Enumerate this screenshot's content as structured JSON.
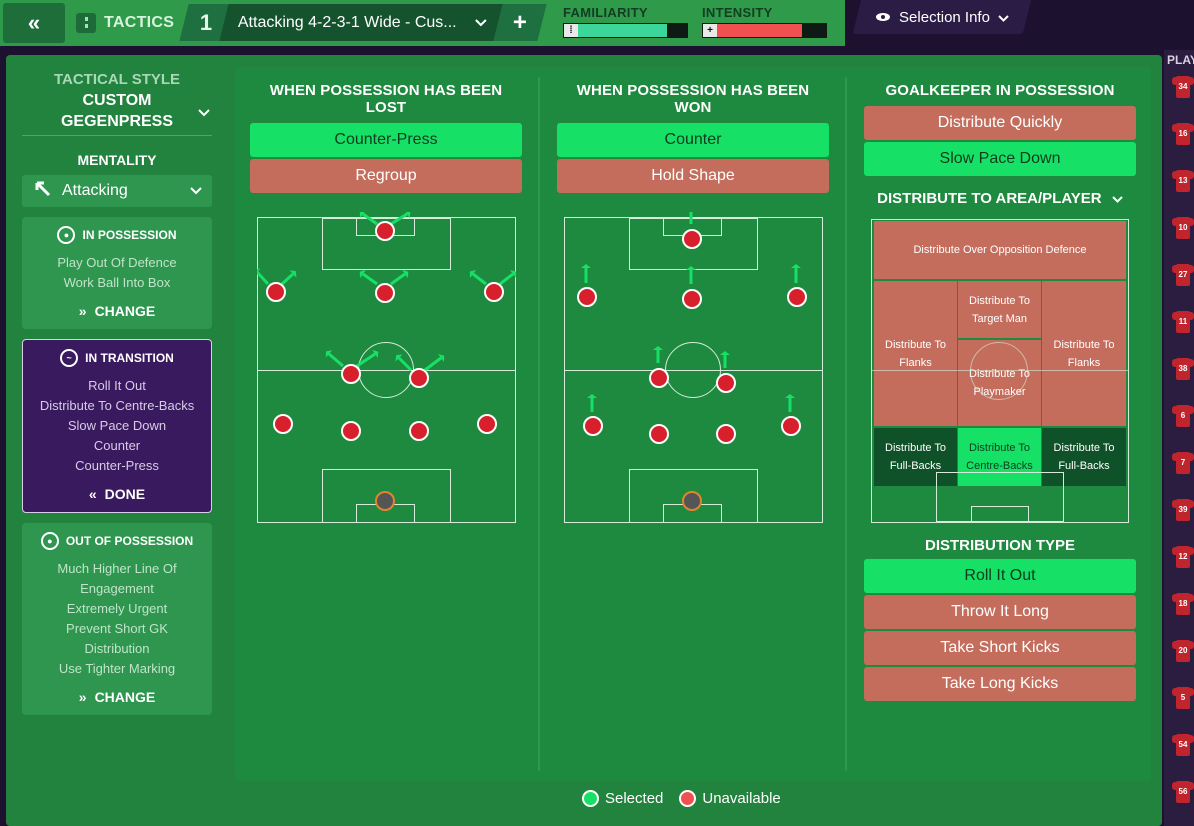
{
  "topbar": {
    "back_icon": "double-chevron-left-icon",
    "tactics_label": "TACTICS",
    "tactic_number": "1",
    "tactic_name": "Attacking 4-2-3-1 Wide - Cus...",
    "add_label": "+",
    "familiarity_label": "FAMILIARITY",
    "familiarity_level": 0.82,
    "familiarity_color": "#3dd69a",
    "intensity_label": "INTENSITY",
    "intensity_level": 0.78,
    "intensity_color": "#f05050",
    "selection_info_label": "Selection Info"
  },
  "right_strip": {
    "header": "PLAY",
    "numbers": [
      "34",
      "16",
      "13",
      "10",
      "27",
      "11",
      "38",
      "6",
      "7",
      "39",
      "12",
      "18",
      "20",
      "5",
      "54",
      "56"
    ]
  },
  "left": {
    "tactical_style_label": "TACTICAL STYLE",
    "tactical_style_value_line1": "CUSTOM",
    "tactical_style_value_line2": "GEGENPRESS",
    "mentality_label": "MENTALITY",
    "mentality_value": "Attacking",
    "in_possession": {
      "title": "IN POSSESSION",
      "items": [
        "Play Out Of Defence",
        "Work Ball Into Box"
      ],
      "action": "CHANGE"
    },
    "in_transition": {
      "title": "IN TRANSITION",
      "items": [
        "Roll It Out",
        "Distribute To Centre-Backs",
        "Slow Pace Down",
        "Counter",
        "Counter-Press"
      ],
      "action": "DONE"
    },
    "out_of_possession": {
      "title": "OUT OF POSSESSION",
      "items": [
        "Much Higher Line Of",
        "Engagement",
        "Extremely Urgent",
        "Prevent Short GK",
        "Distribution",
        "Use Tighter Marking"
      ],
      "action": "CHANGE"
    }
  },
  "lost": {
    "title": "WHEN POSSESSION HAS BEEN LOST",
    "options": [
      {
        "label": "Counter-Press",
        "state": "selected"
      },
      {
        "label": "Regroup",
        "state": "unavailable"
      }
    ]
  },
  "won": {
    "title": "WHEN POSSESSION HAS BEEN WON",
    "options": [
      {
        "label": "Counter",
        "state": "selected"
      },
      {
        "label": "Hold Shape",
        "state": "unavailable"
      }
    ]
  },
  "gk": {
    "title": "GOALKEEPER IN POSSESSION",
    "options": [
      {
        "label": "Distribute Quickly",
        "state": "unavailable"
      },
      {
        "label": "Slow Pace Down",
        "state": "selected"
      }
    ],
    "area_title": "DISTRIBUTE TO AREA/PLAYER",
    "zones": {
      "over_defence": "Distribute Over Opposition Defence",
      "flanks_left": "Distribute To Flanks",
      "target_man": "Distribute To Target Man",
      "playmaker": "Distribute To Playmaker",
      "flanks_right": "Distribute To Flanks",
      "fullbacks_left": "Distribute To Full-Backs",
      "centre_backs": "Distribute To Centre-Backs",
      "fullbacks_right": "Distribute To Full-Backs"
    },
    "type_title": "DISTRIBUTION TYPE",
    "types": [
      {
        "label": "Roll It Out",
        "state": "selected"
      },
      {
        "label": "Throw It Long",
        "state": "unavailable"
      },
      {
        "label": "Take Short Kicks",
        "state": "unavailable"
      },
      {
        "label": "Take Long Kicks",
        "state": "unavailable"
      }
    ]
  },
  "legend": {
    "selected_label": "Selected",
    "selected_color": "#17e067",
    "unavailable_label": "Unavailable",
    "unavailable_color": "#f05050"
  }
}
